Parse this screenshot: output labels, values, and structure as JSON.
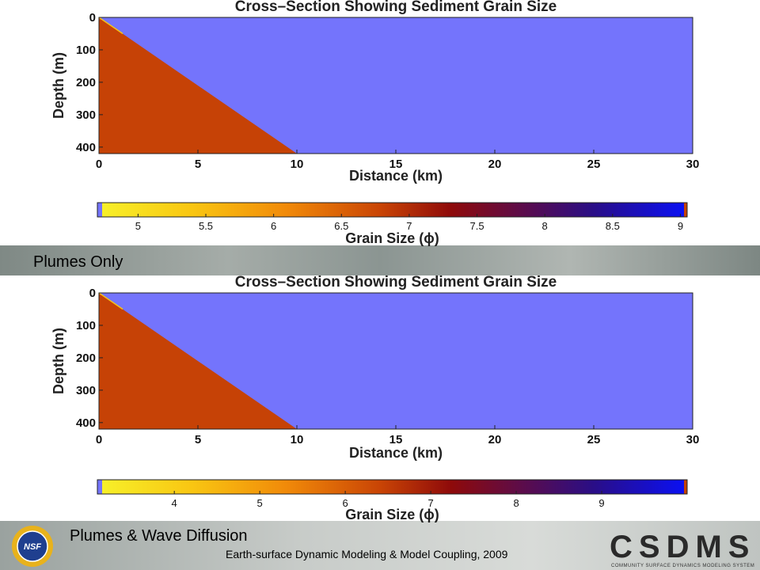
{
  "band_labels": {
    "top": "Plumes Only",
    "bottom": "Plumes & Wave Diffusion"
  },
  "footer": {
    "caption": "Earth-surface Dynamic Modeling & Model Coupling, 2009",
    "logo_text": "CSDMS",
    "logo_subtitle": "COMMUNITY SURFACE DYNAMICS MODELING SYSTEM",
    "nsf_text": "NSF"
  },
  "colors": {
    "water": "#7474fc",
    "sediment": "#c64206",
    "band": "#8a9490"
  },
  "chart_data": [
    {
      "type": "heatmap",
      "title": "Cross–Section Showing Sediment Grain Size",
      "xlabel": "Distance (km)",
      "ylabel": "Depth (m)",
      "xlim": [
        0,
        30
      ],
      "ylim": [
        0,
        420
      ],
      "y_inverted": true,
      "xticks": [
        0,
        5,
        10,
        15,
        20,
        25,
        30
      ],
      "yticks": [
        0,
        100,
        200,
        300,
        400
      ],
      "sediment_wedge": {
        "x": [
          0,
          0,
          10
        ],
        "depth": [
          0,
          420,
          420
        ]
      },
      "colorbar": {
        "label": "Grain Size (ϕ)",
        "ticks": [
          5,
          5.5,
          6,
          6.5,
          7,
          7.5,
          8,
          8.5,
          9
        ],
        "range": [
          4.7,
          9.05
        ]
      }
    },
    {
      "type": "heatmap",
      "title": "Cross–Section Showing Sediment Grain Size",
      "xlabel": "Distance (km)",
      "ylabel": "Depth (m)",
      "xlim": [
        0,
        30
      ],
      "ylim": [
        0,
        420
      ],
      "y_inverted": true,
      "xticks": [
        0,
        5,
        10,
        15,
        20,
        25,
        30
      ],
      "yticks": [
        0,
        100,
        200,
        300,
        400
      ],
      "sediment_wedge": {
        "x": [
          0,
          0,
          10
        ],
        "depth": [
          0,
          420,
          420
        ]
      },
      "colorbar": {
        "label": "Grain Size (ϕ)",
        "ticks": [
          4,
          5,
          6,
          7,
          8,
          9
        ],
        "range": [
          3.1,
          10.0
        ]
      }
    }
  ]
}
